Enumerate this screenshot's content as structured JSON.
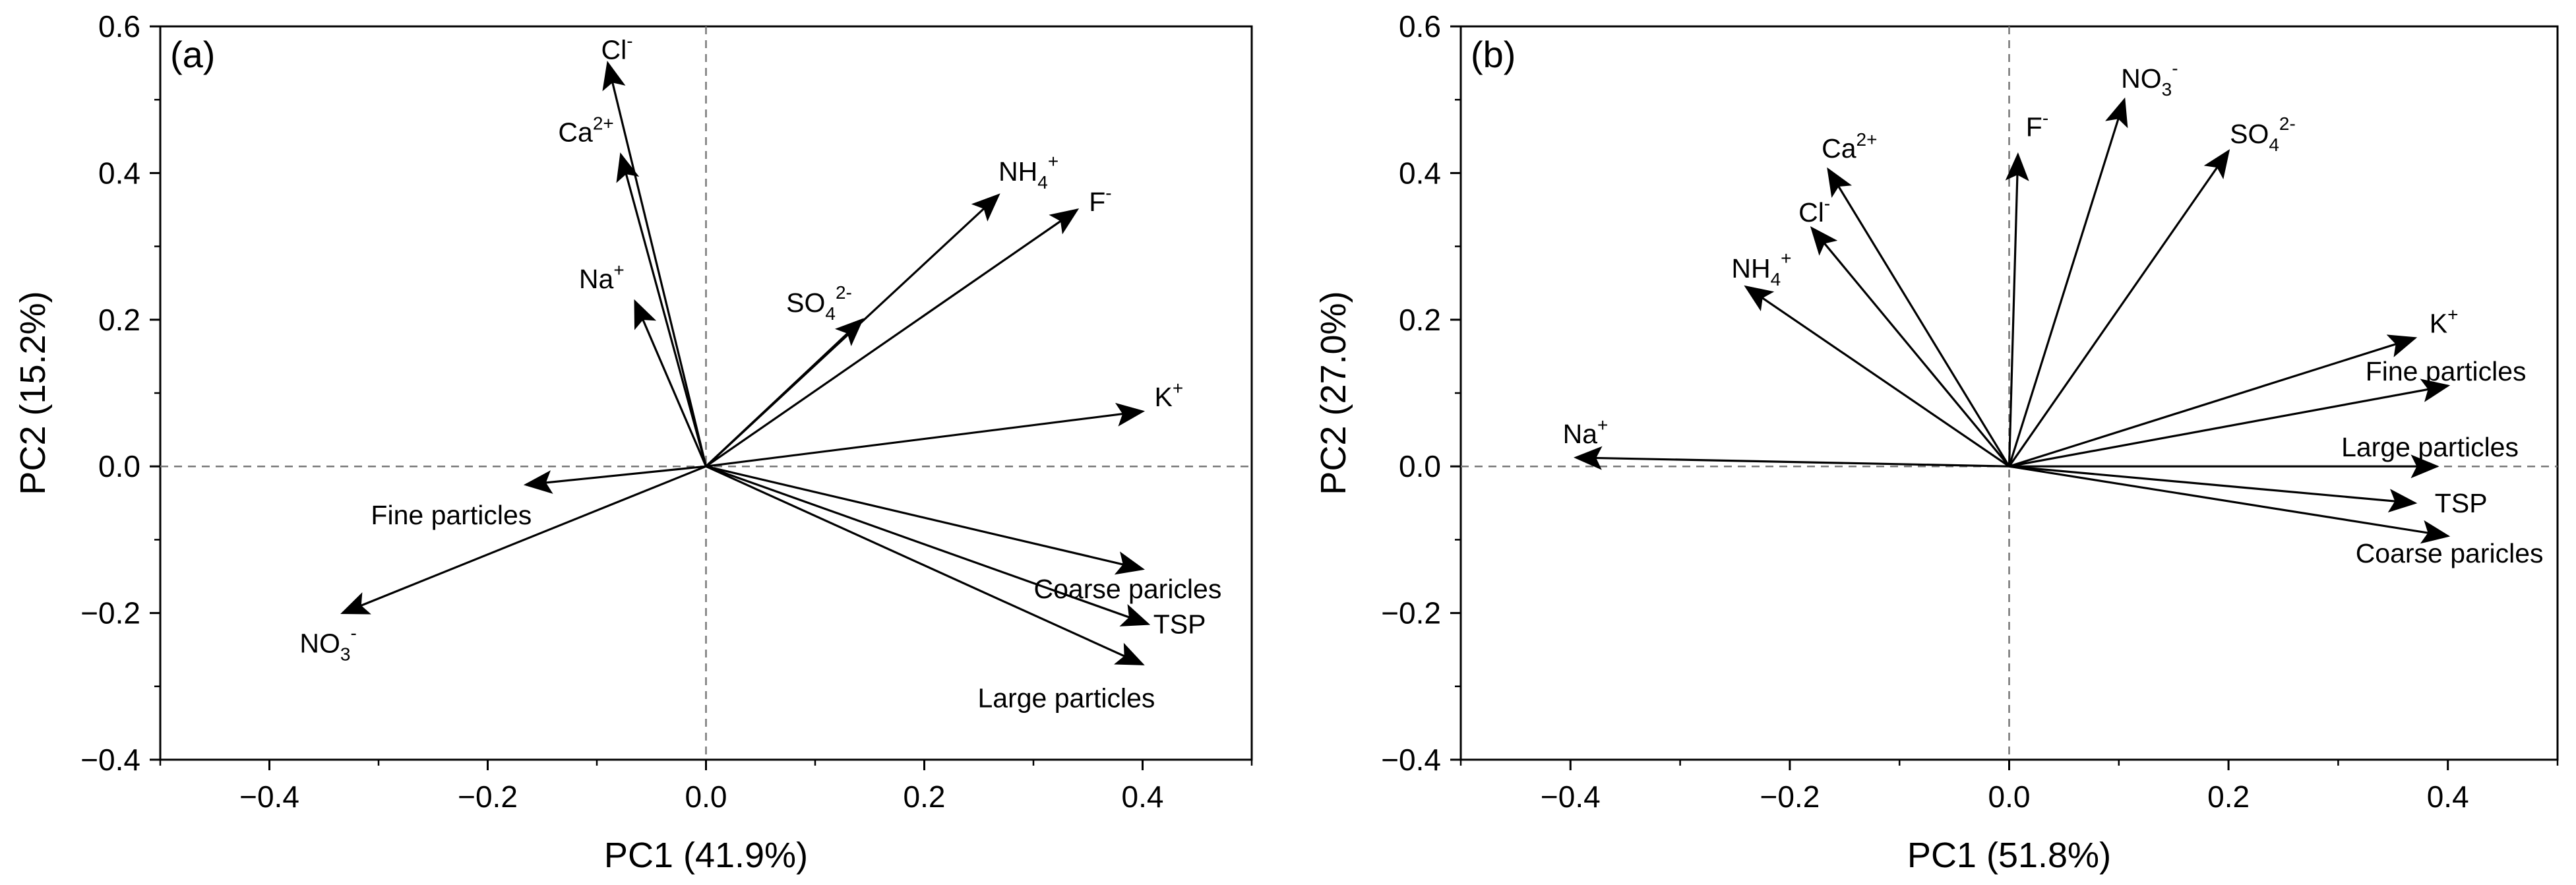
{
  "chart_data": [
    {
      "type": "biplot",
      "panel_label": "(a)",
      "xlabel": "PC1 (41.9%)",
      "ylabel": "PC2 (15.2%)",
      "xlim": [
        -0.5,
        0.5
      ],
      "ylim": [
        -0.4,
        0.6
      ],
      "xticks": [
        "-0.4",
        "-0.2",
        "0.0",
        "0.2",
        "0.4"
      ],
      "yticks": [
        "-0.4",
        "-0.2",
        "0.0",
        "0.2",
        "0.4",
        "0.6"
      ],
      "grid": false,
      "vectors": [
        {
          "label": "Cl",
          "sup": "-",
          "x": -0.09,
          "y": 0.55
        },
        {
          "label": "Ca",
          "sup": "2+",
          "x": -0.078,
          "y": 0.425
        },
        {
          "label": "Na",
          "sup": "+",
          "x": -0.065,
          "y": 0.225
        },
        {
          "label": "NH",
          "sub": "4",
          "sup": "+",
          "x": 0.268,
          "y": 0.37
        },
        {
          "label": "F",
          "sup": "-",
          "x": 0.34,
          "y": 0.35
        },
        {
          "label": "SO",
          "sub": "4",
          "sup": "2-",
          "x": 0.143,
          "y": 0.2
        },
        {
          "label": "K",
          "sup": "+",
          "x": 0.4,
          "y": 0.075
        },
        {
          "label": "Fine particles",
          "x": -0.165,
          "y": -0.025
        },
        {
          "label": "NO",
          "sub": "3",
          "sup": "-",
          "x": -0.333,
          "y": -0.2
        },
        {
          "label": "Coarse paricles",
          "x": 0.4,
          "y": -0.14
        },
        {
          "label": "TSP",
          "x": 0.405,
          "y": -0.215
        },
        {
          "label": "Large particles",
          "x": 0.4,
          "y": -0.27
        }
      ]
    },
    {
      "type": "biplot",
      "panel_label": "(b)",
      "xlabel": "PC1 (51.8%)",
      "ylabel": "PC2 (27.0%)",
      "xlim": [
        -0.5,
        0.5
      ],
      "ylim": [
        -0.4,
        0.6
      ],
      "xticks": [
        "-0.4",
        "-0.2",
        "0.0",
        "0.2",
        "0.4"
      ],
      "yticks": [
        "-0.4",
        "-0.2",
        "0.0",
        "0.2",
        "0.4",
        "0.6"
      ],
      "grid": false,
      "vectors": [
        {
          "label": "NO",
          "sub": "3",
          "sup": "-",
          "x": 0.105,
          "y": 0.5
        },
        {
          "label": "SO",
          "sub": "4",
          "sup": "2-",
          "x": 0.2,
          "y": 0.43
        },
        {
          "label": "F",
          "sup": "-",
          "x": 0.008,
          "y": 0.425
        },
        {
          "label": "Ca",
          "sup": "2+",
          "x": -0.165,
          "y": 0.405
        },
        {
          "label": "Cl",
          "sup": "-",
          "x": -0.18,
          "y": 0.325
        },
        {
          "label": "NH",
          "sub": "4",
          "sup": "+",
          "x": -0.24,
          "y": 0.245
        },
        {
          "label": "Na",
          "sup": "+",
          "x": -0.395,
          "y": 0.012
        },
        {
          "label": "K",
          "sup": "+",
          "x": 0.37,
          "y": 0.175
        },
        {
          "label": "Fine particles",
          "x": 0.4,
          "y": 0.11
        },
        {
          "label": "Large particles",
          "x": 0.39,
          "y": 0.0
        },
        {
          "label": "TSP",
          "x": 0.37,
          "y": -0.05
        },
        {
          "label": "Coarse paricles",
          "x": 0.4,
          "y": -0.095
        }
      ]
    }
  ]
}
